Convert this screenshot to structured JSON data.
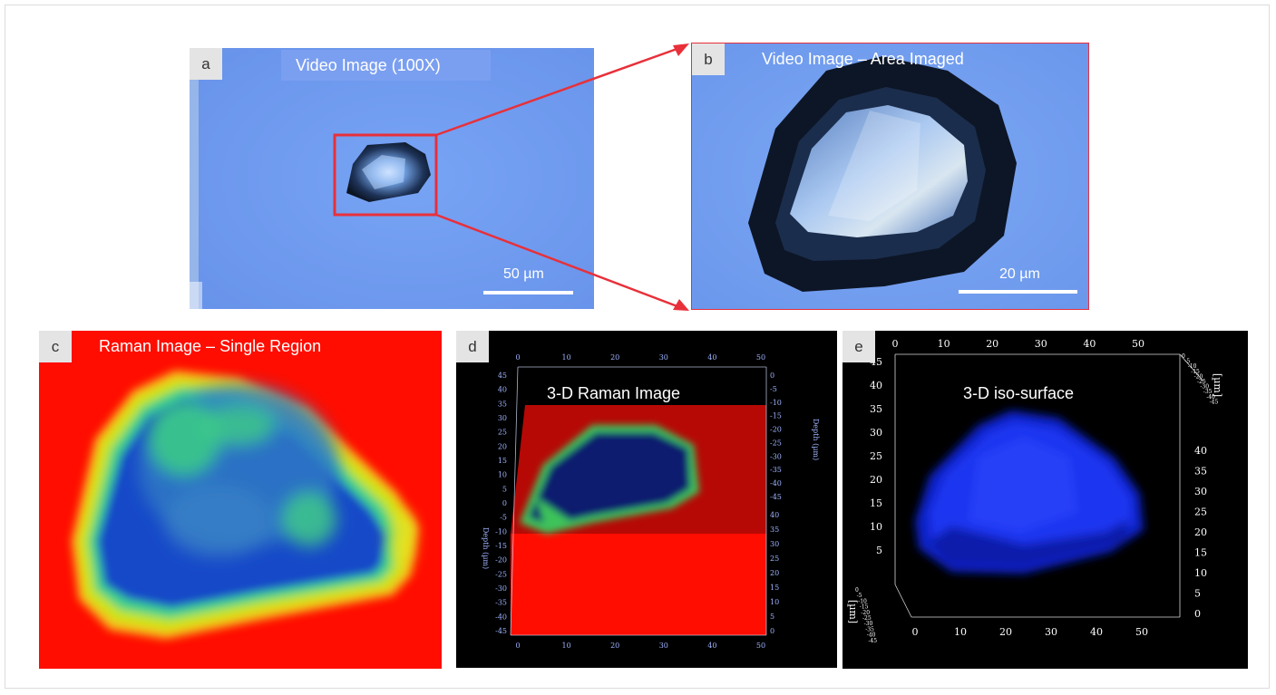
{
  "colors": {
    "video_background": "#6f9cf1",
    "highlight": "#e8303a",
    "raman_background": "#ff0d00",
    "panel_letter_bg": "#e4e4e4"
  },
  "panels": {
    "a": {
      "letter": "a",
      "title": "Video Image (100X)",
      "scale_label": "50 µm"
    },
    "b": {
      "letter": "b",
      "title": "Video Image – Area Imaged",
      "scale_label": "20 µm"
    },
    "c": {
      "letter": "c",
      "title": "Raman Image – Single Region"
    },
    "d": {
      "letter": "d",
      "title": "3-D Raman Image",
      "top_ticks": [
        "0",
        "10",
        "20",
        "30",
        "40",
        "50"
      ],
      "bottom_ticks": [
        "0",
        "10",
        "20",
        "30",
        "40",
        "50"
      ],
      "left_ticks": [
        "45",
        "40",
        "35",
        "30",
        "25",
        "20",
        "15",
        "10",
        "5",
        "0",
        "-5",
        "-10",
        "-15",
        "-20",
        "-25",
        "-30",
        "-35",
        "-40",
        "-45"
      ],
      "right_ticks_upper": [
        "0",
        "-5",
        "-10",
        "-15",
        "-20",
        "-25",
        "-30",
        "-35",
        "-40",
        "-45"
      ],
      "right_ticks_lower": [
        "40",
        "35",
        "30",
        "25",
        "20",
        "15",
        "10",
        "5",
        "0"
      ],
      "left_axis_label": "Depth (µm)",
      "right_axis_label": "Depth (µm)"
    },
    "e": {
      "letter": "e",
      "title": "3-D iso-surface",
      "top_ticks": [
        "0",
        "10",
        "20",
        "30",
        "40",
        "50"
      ],
      "bottom_ticks": [
        "0",
        "10",
        "20",
        "30",
        "40",
        "50"
      ],
      "left_ticks": [
        "45",
        "40",
        "35",
        "30",
        "25",
        "20",
        "15",
        "10",
        "5"
      ],
      "right_ticks": [
        "40",
        "35",
        "30",
        "25",
        "20",
        "15",
        "10",
        "5",
        "0"
      ],
      "upper_right_ticks": [
        "0",
        "-5",
        "-10",
        "-15",
        "-20",
        "-25",
        "-30",
        "-35",
        "-40",
        "-45"
      ],
      "lower_left_ticks": [
        "0",
        "-5",
        "-10",
        "-15",
        "-20",
        "-25",
        "-30",
        "-35",
        "-40",
        "-45"
      ],
      "upper_right_axis_label": "[µm]",
      "lower_left_axis_label": "[µm]"
    }
  }
}
